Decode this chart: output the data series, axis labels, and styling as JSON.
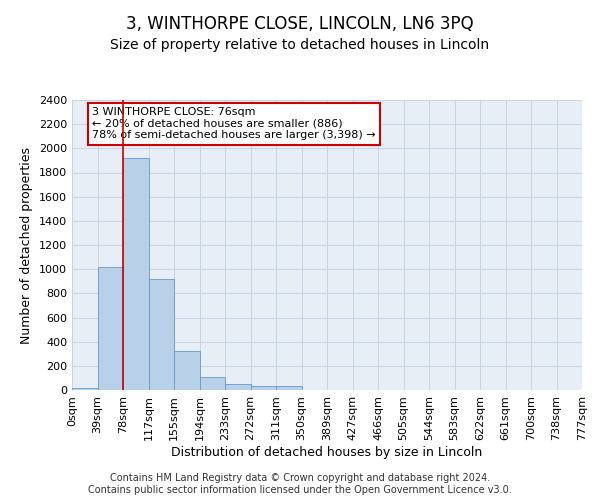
{
  "title": "3, WINTHORPE CLOSE, LINCOLN, LN6 3PQ",
  "subtitle": "Size of property relative to detached houses in Lincoln",
  "xlabel": "Distribution of detached houses by size in Lincoln",
  "ylabel": "Number of detached properties",
  "bin_labels": [
    "0sqm",
    "39sqm",
    "78sqm",
    "117sqm",
    "155sqm",
    "194sqm",
    "233sqm",
    "272sqm",
    "311sqm",
    "350sqm",
    "389sqm",
    "427sqm",
    "466sqm",
    "505sqm",
    "544sqm",
    "583sqm",
    "622sqm",
    "661sqm",
    "700sqm",
    "738sqm",
    "777sqm"
  ],
  "bar_values": [
    20,
    1020,
    1920,
    920,
    320,
    110,
    50,
    30,
    30,
    0,
    0,
    0,
    0,
    0,
    0,
    0,
    0,
    0,
    0,
    0
  ],
  "bar_color": "#b8d0e8",
  "bar_edge_color": "#6699cc",
  "grid_color": "#c8d4e4",
  "background_color": "#e8eef6",
  "vline_x": 2,
  "vline_color": "#cc0000",
  "annotation_text": "3 WINTHORPE CLOSE: 76sqm\n← 20% of detached houses are smaller (886)\n78% of semi-detached houses are larger (3,398) →",
  "annotation_box_color": "#ffffff",
  "annotation_box_edge": "#cc0000",
  "ylim": [
    0,
    2400
  ],
  "yticks": [
    0,
    200,
    400,
    600,
    800,
    1000,
    1200,
    1400,
    1600,
    1800,
    2000,
    2200,
    2400
  ],
  "footer_text": "Contains HM Land Registry data © Crown copyright and database right 2024.\nContains public sector information licensed under the Open Government Licence v3.0.",
  "title_fontsize": 12,
  "subtitle_fontsize": 10,
  "label_fontsize": 9,
  "tick_fontsize": 8,
  "footer_fontsize": 7
}
